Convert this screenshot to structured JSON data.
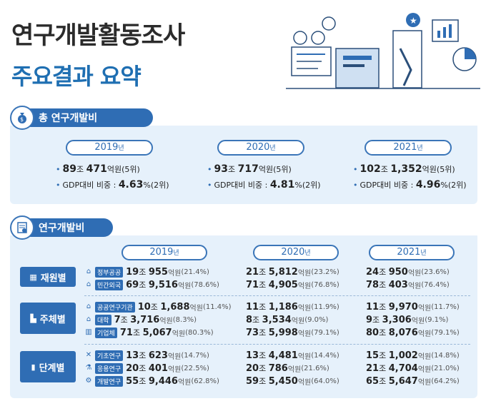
{
  "title_line1": "연구개발활동조사",
  "title_line2": "주요결과 요약",
  "section1": {
    "title": "총 연구개발비",
    "years": [
      {
        "year": "2019",
        "suffix": "년",
        "amount_jo": "89",
        "amount_rest": "471",
        "unit": "억원",
        "rank": "(5위)",
        "gdp_label": "GDP대비 비중 :",
        "gdp_value": "4.63",
        "gdp_unit": "%",
        "gdp_rank": "(2위)"
      },
      {
        "year": "2020",
        "suffix": "년",
        "amount_jo": "93",
        "amount_rest": "717",
        "unit": "억원",
        "rank": "(5위)",
        "gdp_label": "GDP대비 비중 :",
        "gdp_value": "4.81",
        "gdp_unit": "%",
        "gdp_rank": "(2위)"
      },
      {
        "year": "2021",
        "suffix": "년",
        "amount_jo": "102",
        "amount_rest": "1,352",
        "unit": "억원",
        "rank": "(5위)",
        "gdp_label": "GDP대비 비중 :",
        "gdp_value": "4.96",
        "gdp_unit": "%",
        "gdp_rank": "(2위)"
      }
    ]
  },
  "section2": {
    "title": "연구개발비",
    "years": [
      "2019",
      "2020",
      "2021"
    ],
    "year_suffix": "년",
    "jo": "조",
    "unit": "억원",
    "groups": [
      {
        "label": "재원별",
        "rows": [
          {
            "tag": "정부공공",
            "v": [
              [
                "19",
                "955",
                "(21.4%)"
              ],
              [
                "21",
                "5,812",
                "(23.2%)"
              ],
              [
                "24",
                "950",
                "(23.6%)"
              ]
            ]
          },
          {
            "tag": "민간외국",
            "v": [
              [
                "69",
                "9,516",
                "(78.6%)"
              ],
              [
                "71",
                "4,905",
                "(76.8%)"
              ],
              [
                "78",
                "403",
                "(76.4%)"
              ]
            ]
          }
        ]
      },
      {
        "label": "주체별",
        "rows": [
          {
            "tag": "공공연구기관",
            "v": [
              [
                "10",
                "1,688",
                "(11.4%)"
              ],
              [
                "11",
                "1,186",
                "(11.9%)"
              ],
              [
                "11",
                "9,970",
                "(11.7%)"
              ]
            ]
          },
          {
            "tag": "대학",
            "v": [
              [
                "7",
                "3,716",
                "(8.3%)"
              ],
              [
                "8",
                "3,534",
                "(9.0%)"
              ],
              [
                "9",
                "3,306",
                "(9.1%)"
              ]
            ]
          },
          {
            "tag": "기업체",
            "v": [
              [
                "71",
                "5,067",
                "(80.3%)"
              ],
              [
                "73",
                "5,998",
                "(79.1%)"
              ],
              [
                "80",
                "8,076",
                "(79.1%)"
              ]
            ]
          }
        ]
      },
      {
        "label": "단계별",
        "rows": [
          {
            "tag": "기초연구",
            "v": [
              [
                "13",
                "623",
                "(14.7%)"
              ],
              [
                "13",
                "4,481",
                "(14.4%)"
              ],
              [
                "15",
                "1,002",
                "(14.8%)"
              ]
            ]
          },
          {
            "tag": "응용연구",
            "v": [
              [
                "20",
                "401",
                "(22.5%)"
              ],
              [
                "20",
                "786",
                "(21.6%)"
              ],
              [
                "21",
                "4,704",
                "(21.0%)"
              ]
            ]
          },
          {
            "tag": "개발연구",
            "v": [
              [
                "55",
                "9,446",
                "(62.8%)"
              ],
              [
                "59",
                "5,450",
                "(64.0%)"
              ],
              [
                "65",
                "5,647",
                "(64.2%)"
              ]
            ]
          }
        ]
      }
    ]
  }
}
